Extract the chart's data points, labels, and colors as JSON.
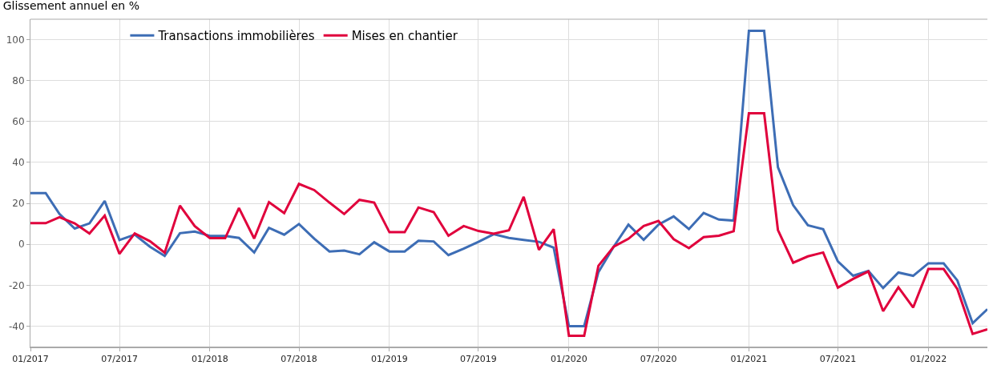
{
  "chart_data": {
    "type": "line",
    "title": "Glissement annuel en %",
    "x": [
      "2017-01",
      "2017-02",
      "2017-03",
      "2017-04",
      "2017-05",
      "2017-06",
      "2017-07",
      "2017-08",
      "2017-09",
      "2017-10",
      "2017-11",
      "2017-12",
      "2018-01",
      "2018-02",
      "2018-03",
      "2018-04",
      "2018-05",
      "2018-06",
      "2018-07",
      "2018-08",
      "2018-09",
      "2018-10",
      "2018-11",
      "2018-12",
      "2019-01",
      "2019-02",
      "2019-03",
      "2019-04",
      "2019-05",
      "2019-06",
      "2019-07",
      "2019-08",
      "2019-09",
      "2019-10",
      "2019-11",
      "2019-12",
      "2020-01",
      "2020-02",
      "2020-03",
      "2020-04",
      "2020-05",
      "2020-06",
      "2020-07",
      "2020-08",
      "2020-09",
      "2020-10",
      "2020-11",
      "2020-12",
      "2021-01",
      "2021-02",
      "2021-03",
      "2021-04",
      "2021-05",
      "2021-06",
      "2021-07",
      "2021-08",
      "2021-09",
      "2021-10",
      "2021-11",
      "2021-12",
      "2022-01",
      "2022-02",
      "2022-03",
      "2022-04",
      "2022-05"
    ],
    "series": [
      {
        "name": "Transactions immobilières",
        "color": "#3d6db5",
        "values": [
          25,
          25,
          14.8,
          7.7,
          10.2,
          21.2,
          2.1,
          4.7,
          -1.2,
          -5.7,
          5.4,
          6.2,
          4.1,
          4.1,
          3.1,
          -4,
          8,
          4.7,
          9.9,
          2.8,
          -3.5,
          -3.1,
          -4.9,
          1,
          -3.5,
          -3.5,
          1.7,
          1.4,
          -5.3,
          -2.1,
          1.2,
          4.9,
          3.1,
          2.1,
          1.2,
          -1.6,
          -40,
          -40,
          -13.6,
          -1.2,
          9.6,
          2.2,
          9.6,
          13.6,
          7.4,
          15.3,
          12.1,
          11.6,
          104.3,
          104.3,
          37.7,
          19.1,
          9.3,
          7.4,
          -8.4,
          -15.4,
          -13,
          -21.4,
          -13.8,
          -15.4,
          -9.3,
          -9.3,
          -17.7,
          -38.6,
          -31.7
        ]
      },
      {
        "name": "Mises en chantier",
        "color": "#e0003c",
        "values": [
          10.3,
          10.3,
          13.2,
          10.2,
          5.3,
          14,
          -4.7,
          5.3,
          1.5,
          -4.1,
          18.9,
          8.9,
          3,
          3,
          17.7,
          2.8,
          20.6,
          15.2,
          29.5,
          26.5,
          20.4,
          14.8,
          21.7,
          20.4,
          5.9,
          5.9,
          18,
          15.7,
          4.2,
          8.9,
          6.5,
          5.2,
          6.8,
          23.2,
          -2.7,
          7.4,
          -44.7,
          -44.7,
          -10.5,
          -1.2,
          2.7,
          8.9,
          11.4,
          2.5,
          -1.9,
          3.5,
          4.2,
          6.4,
          64,
          64,
          7,
          -9,
          -5.9,
          -4,
          -21.2,
          -16.9,
          -13.3,
          -32.7,
          -21,
          -30.9,
          -12.1,
          -12.1,
          -21.9,
          -43.8,
          -41.6
        ]
      }
    ],
    "xlim": [
      "2017-01",
      "2022-05"
    ],
    "xticks": [
      {
        "value": "2017-01",
        "label": "01/2017"
      },
      {
        "value": "2017-07",
        "label": "07/2017"
      },
      {
        "value": "2018-01",
        "label": "01/2018"
      },
      {
        "value": "2018-07",
        "label": "07/2018"
      },
      {
        "value": "2019-01",
        "label": "01/2019"
      },
      {
        "value": "2019-07",
        "label": "07/2019"
      },
      {
        "value": "2020-01",
        "label": "01/2020"
      },
      {
        "value": "2020-07",
        "label": "07/2020"
      },
      {
        "value": "2021-01",
        "label": "01/2021"
      },
      {
        "value": "2021-07",
        "label": "07/2021"
      },
      {
        "value": "2022-01",
        "label": "01/2022"
      }
    ],
    "ylim": [
      -50,
      110
    ],
    "yticks": [
      -40,
      -20,
      0,
      20,
      40,
      60,
      80,
      100
    ],
    "grid": true,
    "legend": "top left",
    "marker": "none",
    "line_style": "solid"
  }
}
